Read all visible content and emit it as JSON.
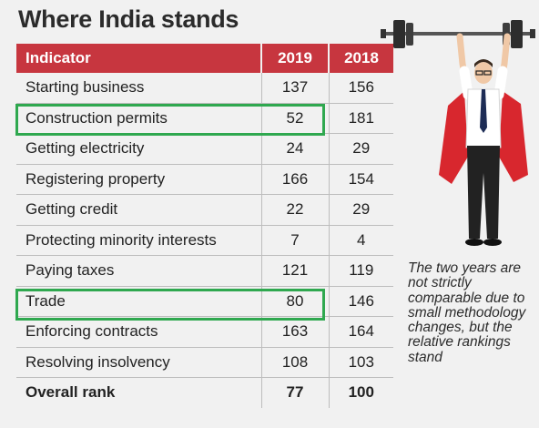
{
  "title": "Where India stands",
  "table": {
    "headers": [
      "Indicator",
      "2019",
      "2018"
    ],
    "rows": [
      {
        "indicator": "Starting business",
        "y2019": "137",
        "y2018": "156"
      },
      {
        "indicator": "Construction permits",
        "y2019": "52",
        "y2018": "181",
        "highlighted": true
      },
      {
        "indicator": "Getting electricity",
        "y2019": "24",
        "y2018": "29"
      },
      {
        "indicator": "Registering property",
        "y2019": "166",
        "y2018": "154"
      },
      {
        "indicator": "Getting credit",
        "y2019": "22",
        "y2018": "29"
      },
      {
        "indicator": "Protecting minority interests",
        "y2019": "7",
        "y2018": "4"
      },
      {
        "indicator": "Paying taxes",
        "y2019": "121",
        "y2018": "119"
      },
      {
        "indicator": "Trade",
        "y2019": "80",
        "y2018": "146",
        "highlighted": true
      },
      {
        "indicator": "Enforcing contracts",
        "y2019": "163",
        "y2018": "164"
      },
      {
        "indicator": "Resolving insolvency",
        "y2019": "108",
        "y2018": "103"
      },
      {
        "indicator": "Overall rank",
        "y2019": "77",
        "y2018": "100",
        "bold": true
      }
    ]
  },
  "note": "The two years are not strictly comparable due to small methodology changes, but the relative rankings stand",
  "colors": {
    "header": "#c7363f",
    "highlight": "#2fa84f",
    "background": "#f1f1f1"
  },
  "illustration": "superhero-weightlifter-icon"
}
